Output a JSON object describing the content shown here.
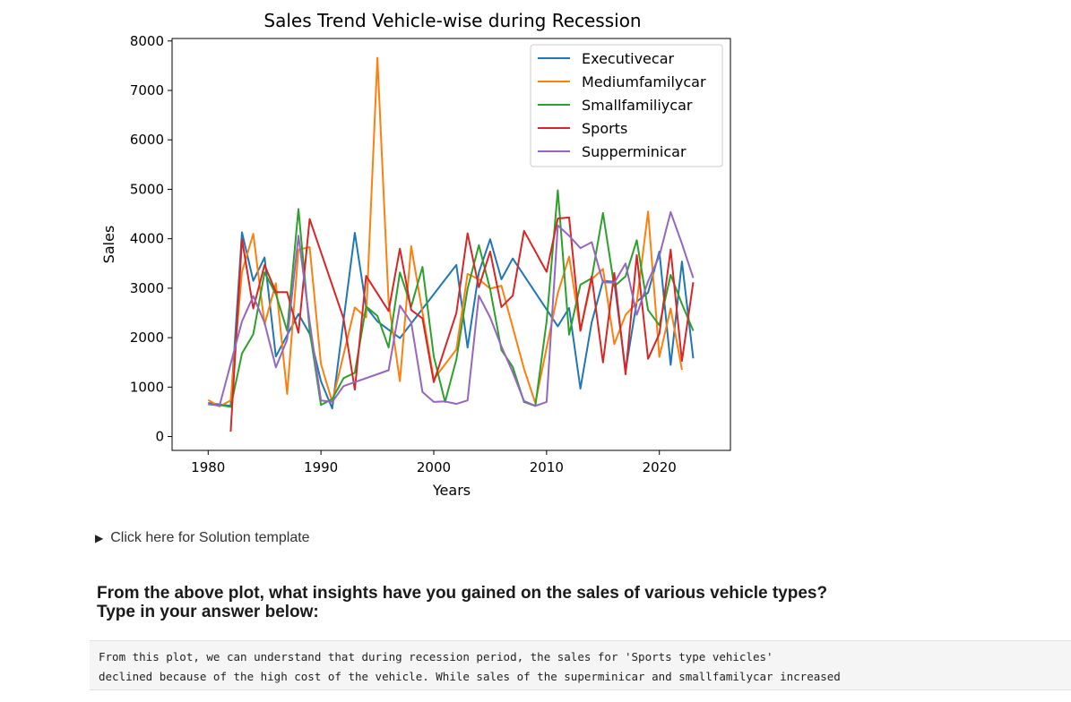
{
  "chart_data": {
    "type": "line",
    "title": "Sales Trend Vehicle-wise during Recession",
    "xlabel": "Years",
    "ylabel": "Sales",
    "xlim": [
      1976.8,
      2026.3
    ],
    "ylim": [
      -280,
      8050
    ],
    "xticks": [
      1980,
      1990,
      2000,
      2010,
      2020
    ],
    "yticks": [
      0,
      1000,
      2000,
      3000,
      4000,
      5000,
      6000,
      7000,
      8000
    ],
    "grid": false,
    "legend_position": "upper right",
    "series": [
      {
        "name": "Executivecar",
        "color": "#1f77b4",
        "points": [
          [
            1980,
            680
          ],
          [
            1982,
            620
          ],
          [
            1983,
            4130
          ],
          [
            1984,
            3150
          ],
          [
            1985,
            3620
          ],
          [
            1986,
            1620
          ],
          [
            1988,
            2480
          ],
          [
            1989,
            2080
          ],
          [
            1990,
            1120
          ],
          [
            1991,
            570
          ],
          [
            1993,
            4120
          ],
          [
            1994,
            2620
          ],
          [
            1995,
            2330
          ],
          [
            1997,
            1990
          ],
          [
            2002,
            3470
          ],
          [
            2003,
            1800
          ],
          [
            2004,
            3320
          ],
          [
            2005,
            3990
          ],
          [
            2006,
            3180
          ],
          [
            2007,
            3600
          ],
          [
            2011,
            2230
          ],
          [
            2012,
            2600
          ],
          [
            2013,
            970
          ],
          [
            2014,
            2310
          ],
          [
            2015,
            3150
          ],
          [
            2016,
            3130
          ],
          [
            2017,
            1330
          ],
          [
            2018,
            2730
          ],
          [
            2019,
            2910
          ],
          [
            2020,
            3740
          ],
          [
            2021,
            1450
          ],
          [
            2022,
            3540
          ],
          [
            2023,
            1580
          ]
        ]
      },
      {
        "name": "Mediumfamilycar",
        "color": "#ff7f0e",
        "points": [
          [
            1980,
            740
          ],
          [
            1981,
            610
          ],
          [
            1982,
            730
          ],
          [
            1983,
            3330
          ],
          [
            1984,
            4100
          ],
          [
            1985,
            2270
          ],
          [
            1986,
            3100
          ],
          [
            1987,
            860
          ],
          [
            1988,
            3780
          ],
          [
            1989,
            3830
          ],
          [
            1990,
            1470
          ],
          [
            1991,
            700
          ],
          [
            1993,
            2610
          ],
          [
            1994,
            2410
          ],
          [
            1995,
            7660
          ],
          [
            1996,
            2720
          ],
          [
            1997,
            1120
          ],
          [
            1998,
            3850
          ],
          [
            1999,
            2510
          ],
          [
            2000,
            1160
          ],
          [
            2002,
            1760
          ],
          [
            2003,
            3290
          ],
          [
            2004,
            3180
          ],
          [
            2005,
            2990
          ],
          [
            2006,
            3050
          ],
          [
            2008,
            1370
          ],
          [
            2009,
            680
          ],
          [
            2011,
            2900
          ],
          [
            2012,
            3640
          ],
          [
            2013,
            2140
          ],
          [
            2014,
            3180
          ],
          [
            2015,
            3390
          ],
          [
            2016,
            1870
          ],
          [
            2017,
            2460
          ],
          [
            2018,
            2710
          ],
          [
            2019,
            4550
          ],
          [
            2020,
            1610
          ],
          [
            2021,
            2590
          ],
          [
            2022,
            1350
          ]
        ]
      },
      {
        "name": "Smallfamiliycar",
        "color": "#2ca02c",
        "points": [
          [
            1980,
            650
          ],
          [
            1981,
            640
          ],
          [
            1982,
            600
          ],
          [
            1983,
            1680
          ],
          [
            1984,
            2070
          ],
          [
            1985,
            3320
          ],
          [
            1986,
            2880
          ],
          [
            1987,
            2140
          ],
          [
            1988,
            4600
          ],
          [
            1989,
            2150
          ],
          [
            1990,
            640
          ],
          [
            1991,
            760
          ],
          [
            1992,
            1180
          ],
          [
            1993,
            1290
          ],
          [
            1994,
            2630
          ],
          [
            1995,
            2440
          ],
          [
            1996,
            1800
          ],
          [
            1997,
            3320
          ],
          [
            1998,
            2630
          ],
          [
            1999,
            3430
          ],
          [
            2000,
            1620
          ],
          [
            2001,
            700
          ],
          [
            2002,
            1560
          ],
          [
            2003,
            2990
          ],
          [
            2004,
            3870
          ],
          [
            2005,
            2980
          ],
          [
            2006,
            1750
          ],
          [
            2007,
            1410
          ],
          [
            2008,
            700
          ],
          [
            2009,
            620
          ],
          [
            2010,
            2330
          ],
          [
            2011,
            4980
          ],
          [
            2012,
            2060
          ],
          [
            2013,
            3070
          ],
          [
            2014,
            3200
          ],
          [
            2015,
            4520
          ],
          [
            2016,
            3040
          ],
          [
            2017,
            3240
          ],
          [
            2018,
            3970
          ],
          [
            2019,
            2560
          ],
          [
            2020,
            2250
          ],
          [
            2021,
            3270
          ],
          [
            2022,
            2680
          ],
          [
            2023,
            2140
          ]
        ]
      },
      {
        "name": "Sports",
        "color": "#d62728",
        "points": [
          [
            1982,
            100
          ],
          [
            1983,
            3990
          ],
          [
            1984,
            2590
          ],
          [
            1985,
            3470
          ],
          [
            1986,
            2920
          ],
          [
            1987,
            2920
          ],
          [
            1988,
            2100
          ],
          [
            1989,
            4400
          ],
          [
            1992,
            2390
          ],
          [
            1993,
            950
          ],
          [
            1994,
            3250
          ],
          [
            1996,
            2540
          ],
          [
            1997,
            3800
          ],
          [
            1998,
            2560
          ],
          [
            1999,
            2390
          ],
          [
            2000,
            1100
          ],
          [
            2002,
            2500
          ],
          [
            2003,
            4110
          ],
          [
            2004,
            3020
          ],
          [
            2005,
            3740
          ],
          [
            2006,
            2620
          ],
          [
            2007,
            2850
          ],
          [
            2008,
            4160
          ],
          [
            2010,
            3330
          ],
          [
            2011,
            4410
          ],
          [
            2012,
            4430
          ],
          [
            2013,
            2140
          ],
          [
            2014,
            3240
          ],
          [
            2015,
            1500
          ],
          [
            2016,
            3310
          ],
          [
            2017,
            1260
          ],
          [
            2018,
            3670
          ],
          [
            2019,
            1570
          ],
          [
            2020,
            2080
          ],
          [
            2021,
            3780
          ],
          [
            2022,
            1530
          ],
          [
            2023,
            3120
          ]
        ]
      },
      {
        "name": "Supperminicar",
        "color": "#9467bd",
        "points": [
          [
            1980,
            660
          ],
          [
            1981,
            620
          ],
          [
            1983,
            2330
          ],
          [
            1984,
            2840
          ],
          [
            1985,
            2300
          ],
          [
            1986,
            1400
          ],
          [
            1987,
            1960
          ],
          [
            1988,
            4060
          ],
          [
            1989,
            2320
          ],
          [
            1990,
            730
          ],
          [
            1991,
            700
          ],
          [
            1992,
            1020
          ],
          [
            1996,
            1340
          ],
          [
            1997,
            2650
          ],
          [
            1998,
            2310
          ],
          [
            1999,
            900
          ],
          [
            2000,
            700
          ],
          [
            2001,
            710
          ],
          [
            2002,
            660
          ],
          [
            2003,
            730
          ],
          [
            2004,
            2850
          ],
          [
            2005,
            2410
          ],
          [
            2006,
            1820
          ],
          [
            2007,
            1300
          ],
          [
            2008,
            720
          ],
          [
            2009,
            620
          ],
          [
            2010,
            700
          ],
          [
            2011,
            4270
          ],
          [
            2012,
            4060
          ],
          [
            2013,
            3810
          ],
          [
            2014,
            3930
          ],
          [
            2015,
            3120
          ],
          [
            2016,
            3110
          ],
          [
            2017,
            3500
          ],
          [
            2018,
            2460
          ],
          [
            2019,
            3140
          ],
          [
            2020,
            3650
          ],
          [
            2021,
            4540
          ],
          [
            2022,
            3900
          ],
          [
            2023,
            3210
          ]
        ]
      }
    ]
  },
  "solution_toggle": {
    "label": "Click here for Solution template"
  },
  "question": {
    "line1": "From the above plot, what insights have you gained on the sales of various vehicle types?",
    "line2": "Type in your answer below:"
  },
  "answer": {
    "line1": "From this plot, we can understand that during recession period, the sales for 'Sports type vehicles'",
    "line2": "declined because of the high cost of the vehicle. While sales of the superminicar and smallfamilycar increased"
  }
}
